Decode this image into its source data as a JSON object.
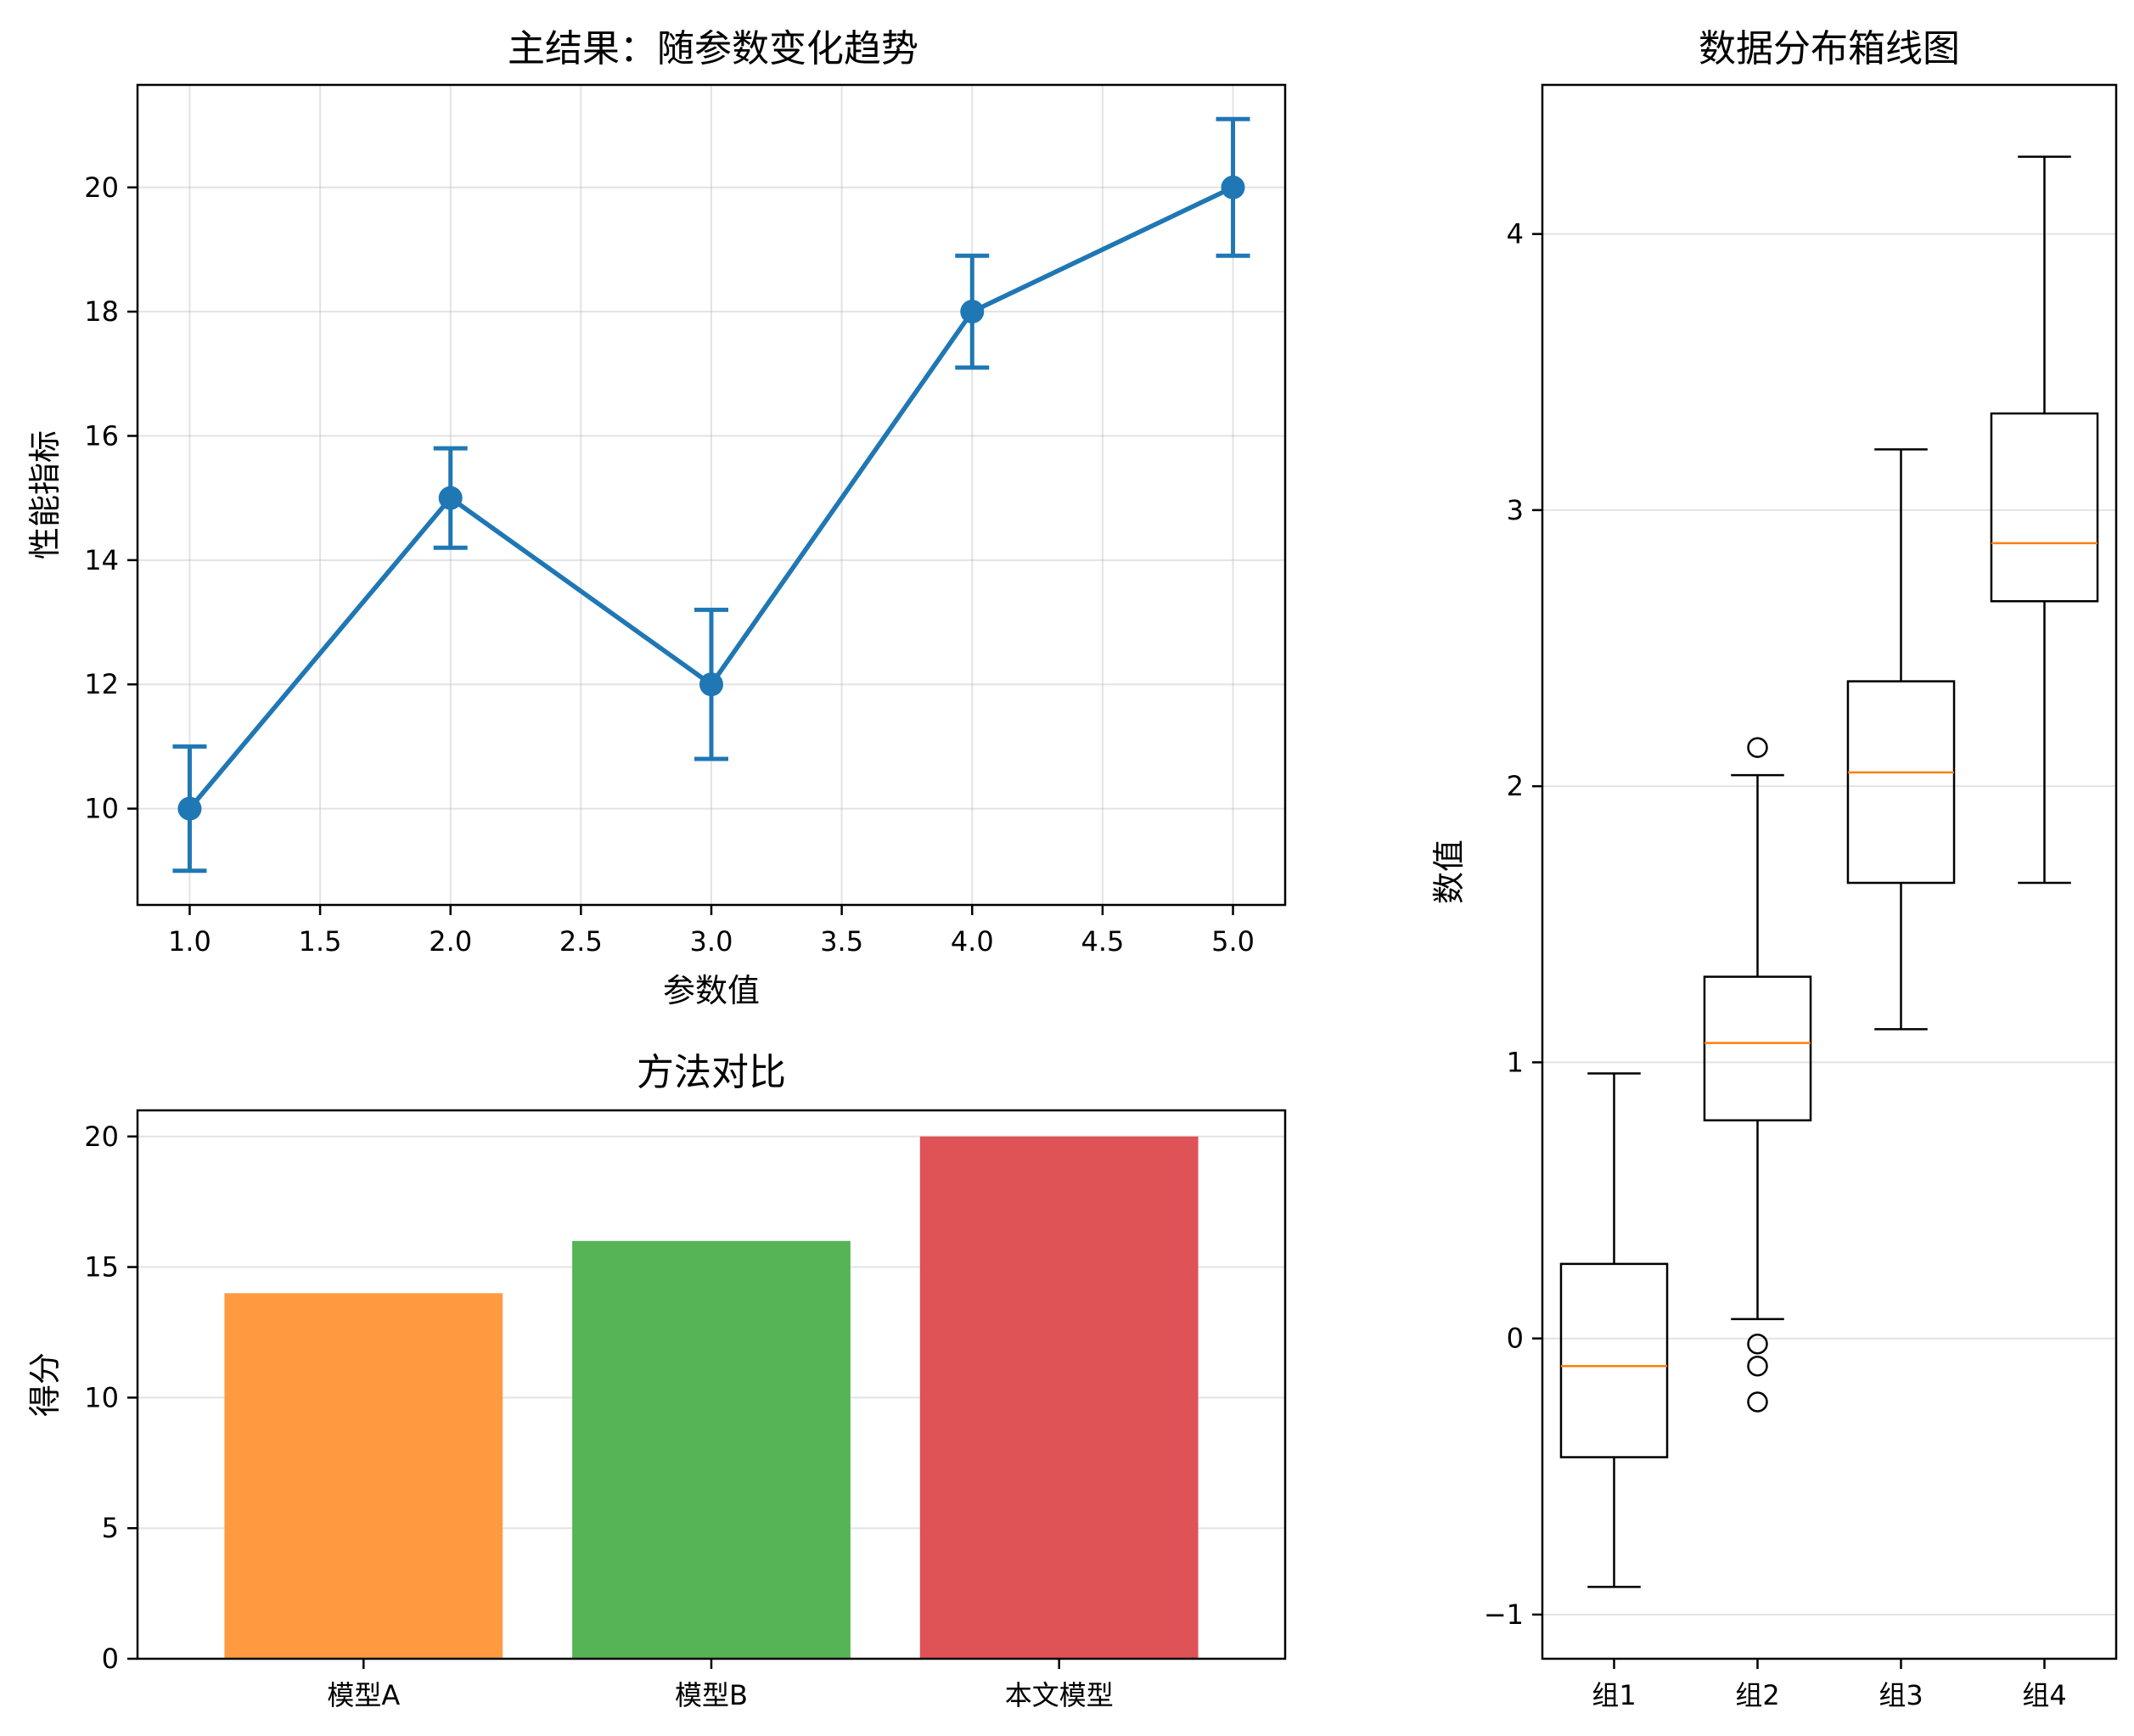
{
  "chart_data": [
    {
      "type": "line",
      "title": "主结果：随参数变化趋势",
      "xlabel": "参数值",
      "ylabel": "性能指标",
      "x": [
        1.0,
        2.0,
        3.0,
        4.0,
        5.0
      ],
      "y": [
        10,
        15,
        12,
        18,
        20
      ],
      "yerr": [
        1.0,
        0.8,
        1.2,
        0.9,
        1.1
      ],
      "xlim": [
        0.8,
        5.2
      ],
      "ylim": [
        8.45,
        21.65
      ],
      "xticks": [
        "1.0",
        "1.5",
        "2.0",
        "2.5",
        "3.0",
        "3.5",
        "4.0",
        "4.5",
        "5.0"
      ],
      "yticks": [
        "10",
        "12",
        "14",
        "16",
        "18",
        "20"
      ],
      "grid": true,
      "color": "#1f77b4"
    },
    {
      "type": "bar",
      "title": "方法对比",
      "xlabel": "",
      "ylabel": "得分",
      "categories": [
        "模型A",
        "模型B",
        "本文模型"
      ],
      "values": [
        14,
        16,
        20
      ],
      "colors": [
        "#ff9a40",
        "#56b356",
        "#df5255"
      ],
      "ylim": [
        0,
        21
      ],
      "yticks": [
        "0",
        "5",
        "10",
        "15",
        "20"
      ],
      "grid": true
    },
    {
      "type": "box",
      "title": "数据分布箱线图",
      "xlabel": "",
      "ylabel": "数值",
      "categories": [
        "组1",
        "组2",
        "组3",
        "组4"
      ],
      "boxes": [
        {
          "whislo": -0.9,
          "q1": -0.43,
          "med": -0.1,
          "q3": 0.27,
          "whishi": 0.96,
          "fliers": []
        },
        {
          "whislo": 0.07,
          "q1": 0.79,
          "med": 1.07,
          "q3": 1.31,
          "whishi": 2.04,
          "fliers": [
            2.14,
            -0.02,
            -0.1,
            -0.23
          ]
        },
        {
          "whislo": 1.12,
          "q1": 1.65,
          "med": 2.05,
          "q3": 2.38,
          "whishi": 3.22,
          "fliers": []
        },
        {
          "whislo": 1.65,
          "q1": 2.67,
          "med": 2.88,
          "q3": 3.35,
          "whishi": 4.28,
          "fliers": []
        }
      ],
      "ylim": [
        -1.16,
        4.54
      ],
      "yticks": [
        "-1",
        "0",
        "1",
        "2",
        "3",
        "4"
      ],
      "grid": true,
      "median_color": "#ff7f0e"
    }
  ]
}
